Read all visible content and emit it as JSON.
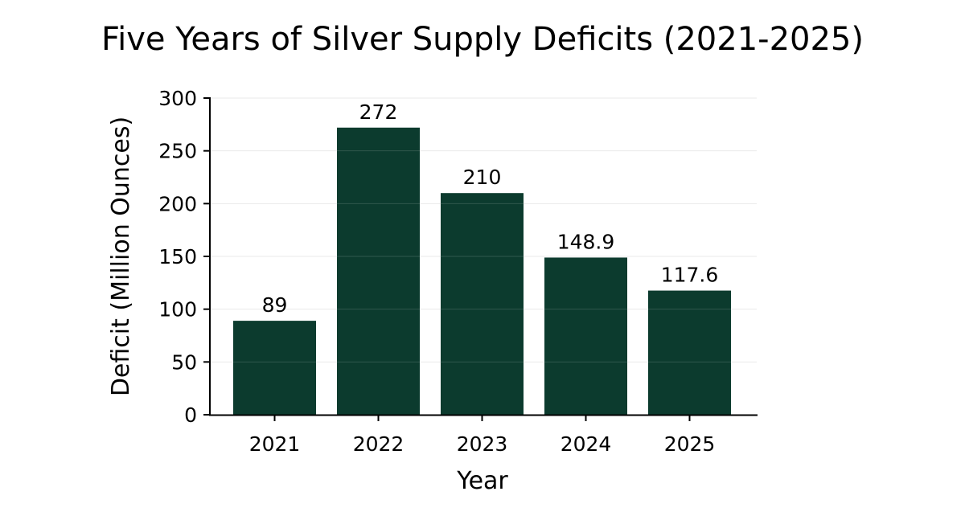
{
  "chart_data": {
    "type": "bar",
    "title": "Five Years of Silver Supply Deficits (2021-2025)",
    "xlabel": "Year",
    "ylabel": "Deficit (Million Ounces)",
    "categories": [
      "2021",
      "2022",
      "2023",
      "2024",
      "2025"
    ],
    "values": [
      89,
      272,
      210,
      148.9,
      117.6
    ],
    "data_labels": [
      "89",
      "272",
      "210",
      "148.9",
      "117.6"
    ],
    "ylim": [
      0,
      300
    ],
    "yticks": [
      0,
      50,
      100,
      150,
      200,
      250,
      300
    ],
    "grid": "y",
    "bar_color": "#0c3b2e",
    "grid_color": "#e6e6e6"
  }
}
